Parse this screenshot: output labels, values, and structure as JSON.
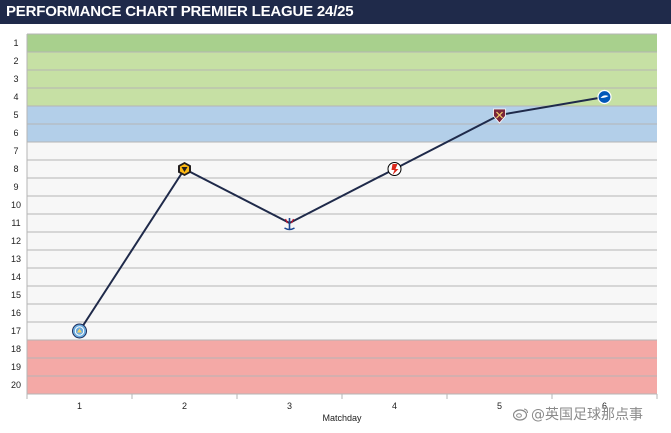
{
  "header": {
    "title": "PERFORMANCE CHART PREMIER LEAGUE 24/25"
  },
  "chart_data": {
    "type": "line",
    "title": "PERFORMANCE CHART PREMIER LEAGUE 24/25",
    "xlabel": "Matchday",
    "ylabel": "",
    "x": [
      1,
      2,
      3,
      4,
      5,
      6
    ],
    "y_ticks": [
      1,
      2,
      3,
      4,
      5,
      6,
      7,
      8,
      9,
      10,
      11,
      12,
      13,
      14,
      15,
      16,
      17,
      18,
      19,
      20
    ],
    "ylim": [
      1,
      20
    ],
    "y_inverted": true,
    "grid": true,
    "series": [
      {
        "values": [
          17,
          8,
          11,
          8,
          5,
          4
        ],
        "opponent_icons": [
          "city-crest-icon",
          "wolves-crest-icon",
          "palace-crest-icon",
          "bournemouth-crest-icon",
          "westham-crest-icon",
          "brighton-crest-icon"
        ]
      }
    ],
    "zones": [
      {
        "from": 1,
        "to": 4,
        "color": "#c6e0a4",
        "top_color": "#a8d08d"
      },
      {
        "from": 5,
        "to": 6,
        "color": "#b3cfe9"
      },
      {
        "from": 18,
        "to": 20,
        "color": "#f4a9a6"
      }
    ],
    "line_color": "#1f2a4a"
  },
  "watermark": {
    "text": "@英国足球那点事"
  }
}
